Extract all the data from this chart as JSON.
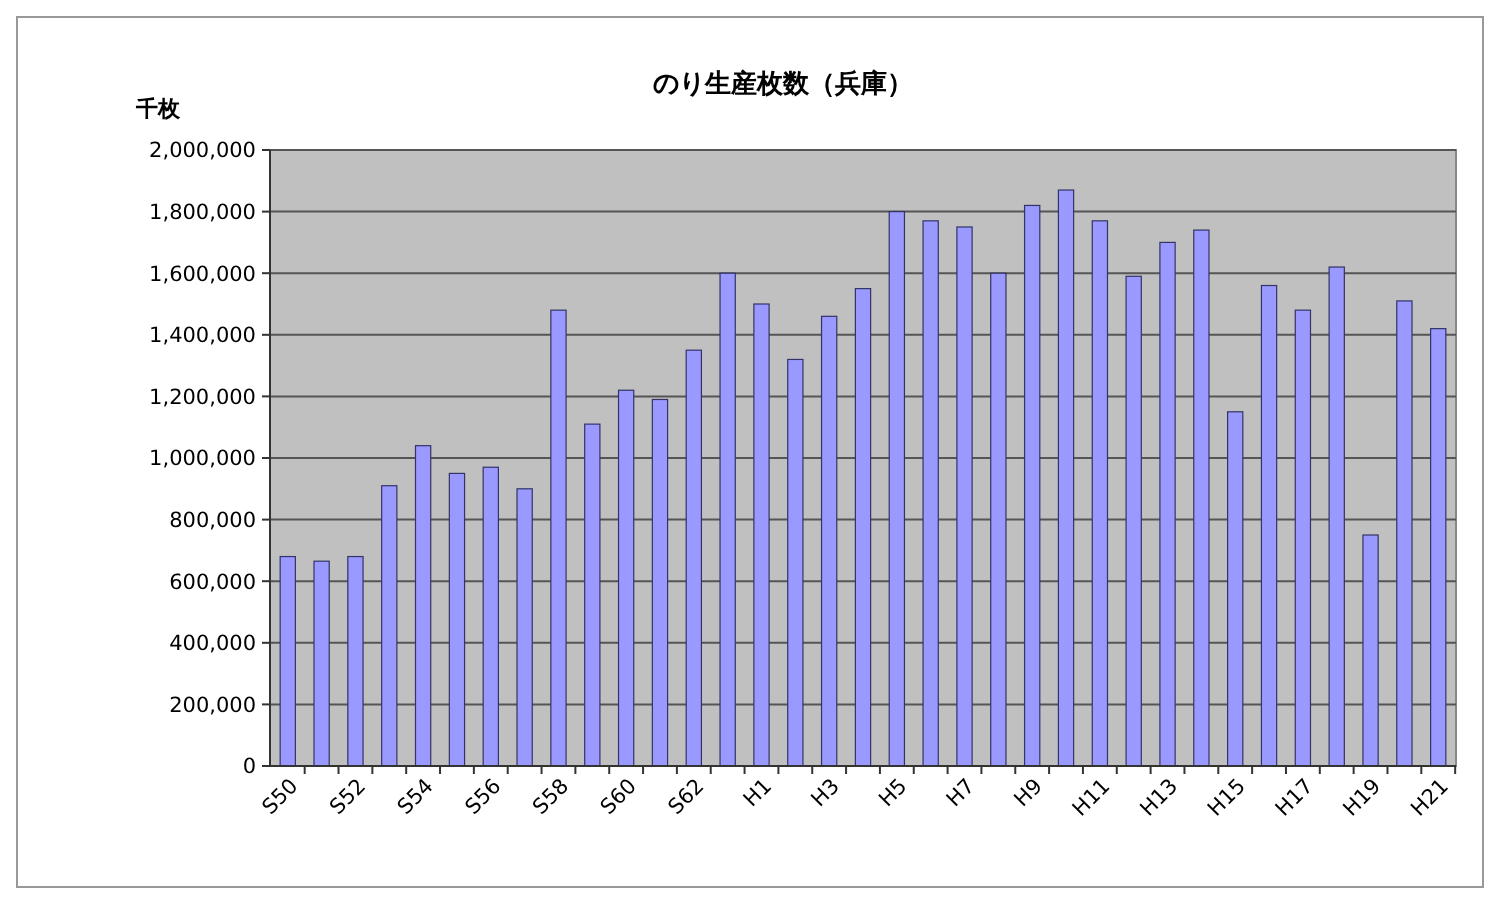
{
  "chart_data": {
    "type": "bar",
    "title": "のり生産枚数（兵庫）",
    "ylabel": "千枚",
    "categories": [
      "S50",
      null,
      "S52",
      null,
      "S54",
      null,
      "S56",
      null,
      "S58",
      null,
      "S60",
      null,
      "S62",
      null,
      "H1",
      null,
      "H3",
      null,
      "H5",
      null,
      "H7",
      null,
      "H9",
      null,
      "H11",
      null,
      "H13",
      null,
      "H15",
      null,
      "H17",
      null,
      "H19",
      null,
      "H21"
    ],
    "values": [
      680000,
      665000,
      680000,
      910000,
      1040000,
      950000,
      970000,
      900000,
      1480000,
      1110000,
      1220000,
      1190000,
      1350000,
      1600000,
      1500000,
      1320000,
      1460000,
      1550000,
      1800000,
      1770000,
      1750000,
      1600000,
      1820000,
      1870000,
      1770000,
      1590000,
      1700000,
      1740000,
      1150000,
      1560000,
      1480000,
      1620000,
      750000,
      1510000,
      1420000
    ],
    "color": "#9999ff",
    "ylim": [
      0,
      2000000
    ],
    "yticks": [
      0,
      {
        "value": 200000,
        "label": "200,000"
      },
      {
        "value": 400000,
        "label": "400,000"
      },
      {
        "value": 600000,
        "label": "600,000"
      },
      {
        "value": 800000,
        "label": "800,000"
      },
      {
        "value": 1000000,
        "label": "1,000,000"
      },
      {
        "value": 1200000,
        "label": "1,200,000"
      },
      {
        "value": 1400000,
        "label": "1,400,000"
      },
      {
        "value": 1600000,
        "label": "1,600,000"
      },
      {
        "value": 1800000,
        "label": "1,800,000"
      },
      {
        "value": 2000000,
        "label": "2,000,000"
      }
    ],
    "grid": "y"
  }
}
